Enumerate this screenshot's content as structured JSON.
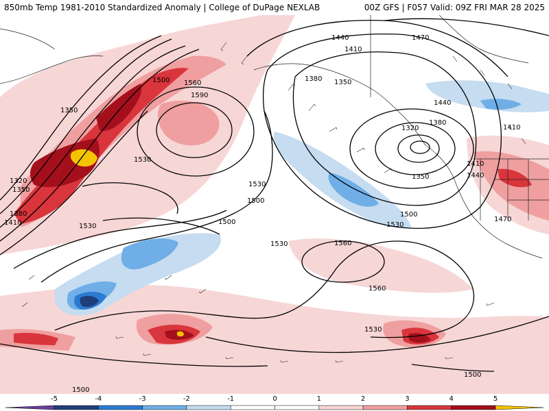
{
  "header": {
    "title": "850mb Temp 1981-2010 Standardized Anomaly | College of DuPage NEXLAB",
    "run_info": "00Z GFS | F057 Valid: 09Z FRI MAR 28 2025"
  },
  "colors": {
    "neg5": "#6a3d9a",
    "neg4": "#1f3f7a",
    "neg3": "#2b7bd0",
    "neg2": "#6faee6",
    "neg1": "#c6dcf0",
    "zero": "#ffffff",
    "pos1": "#f7d6d6",
    "pos2": "#ef9f9f",
    "pos3": "#d9353c",
    "pos4": "#a3101c",
    "pos5": "#6a0a10",
    "over": "#f5c400"
  },
  "contour_labels": {
    "c1440a": "1440",
    "c1470a": "1470",
    "c1410a": "1410",
    "c1380a": "1380",
    "c1350a": "1350",
    "c1500a": "1500",
    "c1560a": "1560",
    "c1590a": "1590",
    "c1350b": "1350",
    "c1320a": "1320",
    "c1350c": "1350",
    "c1380b": "1380",
    "c1410b": "1410",
    "c1530a": "1530",
    "c1530b": "1530",
    "c1500b": "1500",
    "c1530c": "1530",
    "c1500c": "1500",
    "c1530d": "1530",
    "c1560b": "1560",
    "c1500d": "1500",
    "c1530e": "1530",
    "c1560c": "1560",
    "c1320b": "1320",
    "c1380c": "1380",
    "c1350d": "1350",
    "c1440b": "1440",
    "c1410c": "1410",
    "c1410d": "1410",
    "c1440c": "1440",
    "c1470b": "1470",
    "c1530f": "1530",
    "c1500e": "1500",
    "c1500f": "1500"
  },
  "colorbar": {
    "ticks": [
      "-5",
      "-4",
      "-3",
      "-2",
      "-1",
      "0",
      "1",
      "2",
      "3",
      "4",
      "5"
    ]
  }
}
